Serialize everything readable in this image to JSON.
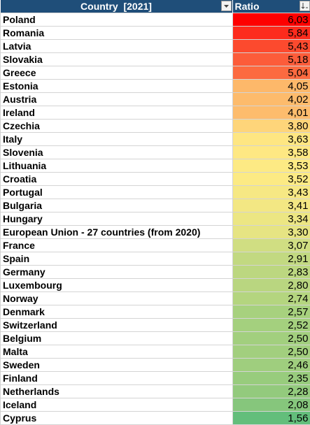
{
  "table": {
    "headers": [
      "Country  [2021]",
      "Ratio"
    ],
    "rows": [
      [
        "Poland",
        "6,03"
      ],
      [
        "Romania",
        "5,84"
      ],
      [
        "Latvia",
        "5,43"
      ],
      [
        "Slovakia",
        "5,18"
      ],
      [
        "Greece",
        "5,04"
      ],
      [
        "Estonia",
        "4,05"
      ],
      [
        "Austria",
        "4,02"
      ],
      [
        "Ireland",
        "4,01"
      ],
      [
        "Czechia",
        "3,80"
      ],
      [
        "Italy",
        "3,63"
      ],
      [
        "Slovenia",
        "3,58"
      ],
      [
        "Lithuania",
        "3,53"
      ],
      [
        "Croatia",
        "3,52"
      ],
      [
        "Portugal",
        "3,43"
      ],
      [
        "Bulgaria",
        "3,41"
      ],
      [
        "Hungary",
        "3,34"
      ],
      [
        "European Union - 27 countries (from 2020)",
        "3,30"
      ],
      [
        "France",
        "3,07"
      ],
      [
        "Spain",
        "2,91"
      ],
      [
        "Germany",
        "2,83"
      ],
      [
        "Luxembourg",
        "2,80"
      ],
      [
        "Norway",
        "2,74"
      ],
      [
        "Denmark",
        "2,57"
      ],
      [
        "Switzerland",
        "2,52"
      ],
      [
        "Belgium",
        "2,50"
      ],
      [
        "Malta",
        "2,50"
      ],
      [
        "Sweden",
        "2,46"
      ],
      [
        "Finland",
        "2,35"
      ],
      [
        "Netherlands",
        "2,28"
      ],
      [
        "Iceland",
        "2,08"
      ],
      [
        "Cyprus",
        "1,56"
      ]
    ],
    "colors": [
      "#fe0000",
      "#fd2b1d",
      "#fc4a2e",
      "#fc5c3a",
      "#fc6a40",
      "#fdb86a",
      "#fdbb6c",
      "#fdbc6d",
      "#fed57a",
      "#fee682",
      "#fee883",
      "#fdea84",
      "#fcea84",
      "#f6e884",
      "#f3e783",
      "#ece683",
      "#e6e483",
      "#d0de82",
      "#c2d981",
      "#bcd780",
      "#b9d680",
      "#b4d57f",
      "#a7d17e",
      "#a4d07e",
      "#a2cf7e",
      "#a2cf7e",
      "#9fce7e",
      "#98cc7d",
      "#93ca7d",
      "#86c67c",
      "#63be7b"
    ]
  }
}
